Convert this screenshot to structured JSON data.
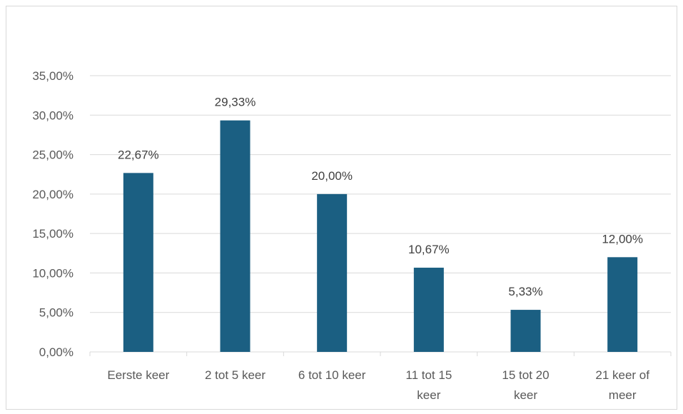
{
  "chart_data": {
    "type": "bar",
    "categories": [
      [
        "Eerste keer"
      ],
      [
        "2 tot 5 keer"
      ],
      [
        "6 tot 10 keer"
      ],
      [
        "11 tot 15",
        "keer"
      ],
      [
        "15 tot 20",
        "keer"
      ],
      [
        "21 keer of",
        "meer"
      ]
    ],
    "values": [
      22.67,
      29.33,
      20.0,
      10.67,
      5.33,
      12.0
    ],
    "data_labels": [
      "22,67%",
      "29,33%",
      "20,00%",
      "10,67%",
      "5,33%",
      "12,00%"
    ],
    "y_ticks": [
      0,
      5,
      10,
      15,
      20,
      25,
      30,
      35
    ],
    "y_tick_labels": [
      "0,00%",
      "5,00%",
      "10,00%",
      "15,00%",
      "20,00%",
      "25,00%",
      "30,00%",
      "35,00%"
    ],
    "ylim": [
      0,
      35
    ],
    "grid": true,
    "legend": "none",
    "bar_color": "#1b5f82",
    "grid_color": "#d9d9d9"
  }
}
